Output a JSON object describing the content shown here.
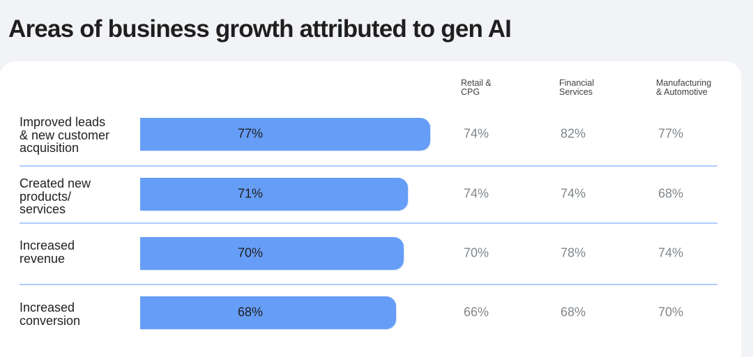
{
  "title": "Areas of business growth attributed to gen AI",
  "chart_data": {
    "type": "bar",
    "orientation": "horizontal",
    "categories": [
      "Improved leads\n& new customer\nacquisition",
      "Created new\nproducts/\nservices",
      "Increased\nrevenue",
      "Increased\nconversion"
    ],
    "values": [
      77,
      71,
      70,
      68
    ],
    "value_labels": [
      "77%",
      "71%",
      "70%",
      "68%"
    ],
    "bar_color": "#669df6",
    "table": {
      "columns": [
        "Retail &\nCPG",
        "Financial\nServices",
        "Manufacturing\n& Automotive"
      ],
      "rows": [
        [
          "74%",
          "82%",
          "77%"
        ],
        [
          "74%",
          "74%",
          "68%"
        ],
        [
          "70%",
          "78%",
          "74%"
        ],
        [
          "66%",
          "68%",
          "70%"
        ]
      ]
    }
  }
}
